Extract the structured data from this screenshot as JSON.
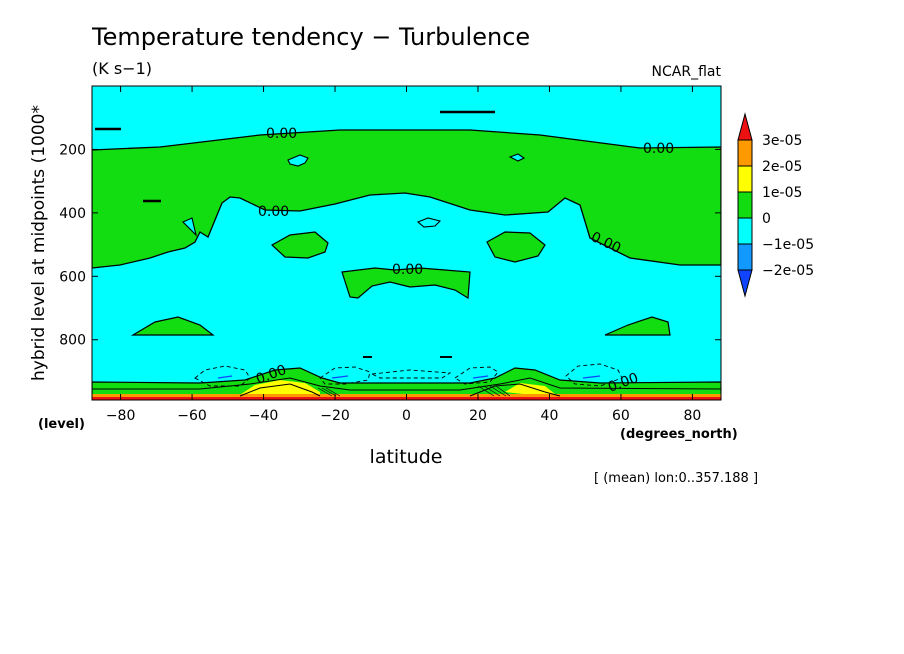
{
  "title": "Temperature tendency − Turbulence",
  "units": "(K s−1)",
  "colormap_name": "NCAR_flat",
  "footer": "[ (mean) lon:0..357.188 ]",
  "chart_data": {
    "type": "heatmap",
    "xlabel": "latitude",
    "x_unit_label": "(degrees_north)",
    "ylabel": "hybrid level at midpoints (1000*",
    "y_unit_label": "(level)",
    "xlim": [
      -88,
      88
    ],
    "ylim": [
      990,
      0
    ],
    "x_ticks": [
      -80,
      -60,
      -40,
      -20,
      0,
      20,
      40,
      60,
      80
    ],
    "y_ticks": [
      200,
      400,
      600,
      800
    ],
    "colorbar": {
      "labels": [
        "3e-05",
        "2e-05",
        "1e-05",
        "0",
        "−1e-05",
        "−2e-05"
      ],
      "colors": [
        "#ee1111",
        "#ff9900",
        "#ffff00",
        "#11dd11",
        "#00ffff",
        "#1199ff",
        "#1144ff"
      ]
    },
    "contour_labels": [
      "0.00",
      "0.00",
      "0.00",
      "0.00",
      "0.00",
      "0.00",
      "0.00"
    ]
  }
}
